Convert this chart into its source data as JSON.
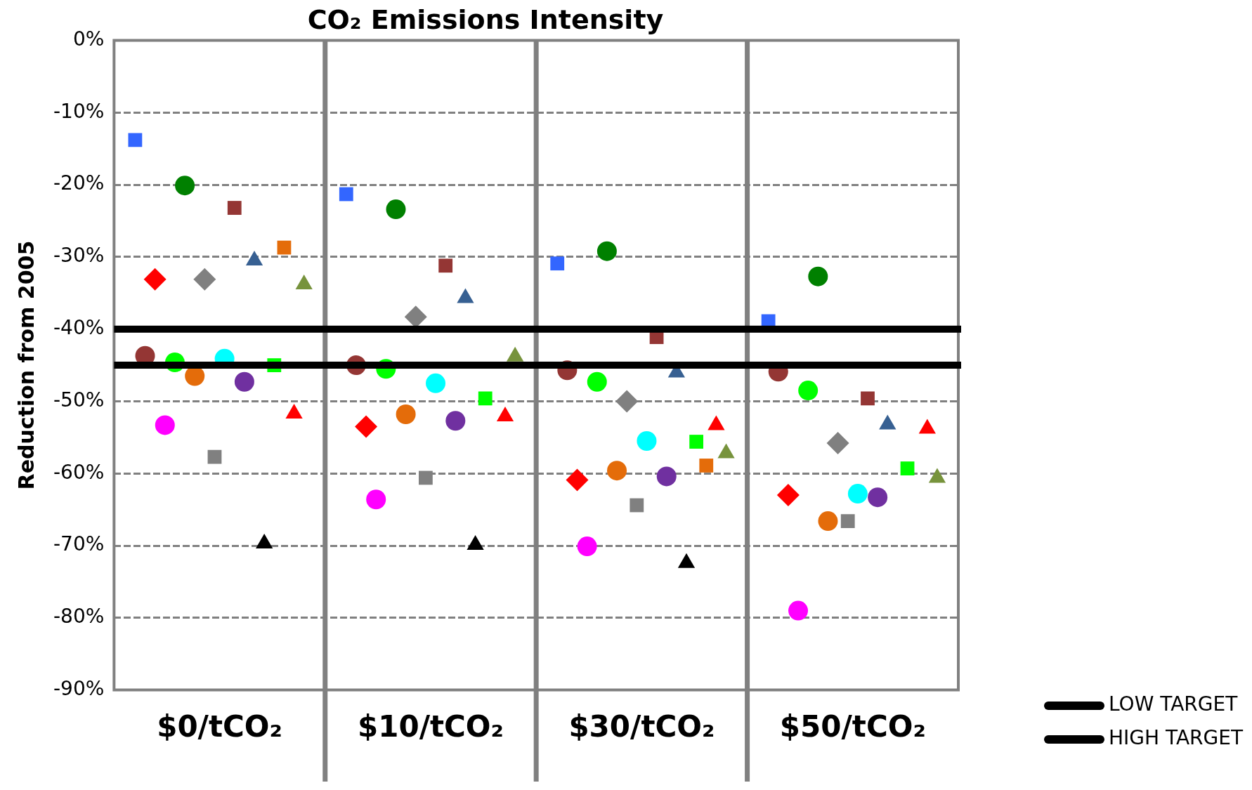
{
  "chart_data": {
    "type": "scatter",
    "title": "CO₂ Emissions Intensity",
    "ylabel": "Reduction from 2005",
    "categories": [
      "$0/tCO₂",
      "$10/tCO₂",
      "$30/tCO₂",
      "$50/tCO₂"
    ],
    "ylim": [
      -90,
      0
    ],
    "yticks": [
      {
        "value": -90,
        "label": "-90%"
      },
      {
        "value": -80,
        "label": "-80%"
      },
      {
        "value": -70,
        "label": "-70%"
      },
      {
        "value": -60,
        "label": "-60%"
      },
      {
        "value": -50,
        "label": "-50%"
      },
      {
        "value": -40,
        "label": "-40%"
      },
      {
        "value": -30,
        "label": "-30%"
      },
      {
        "value": -20,
        "label": "-20%"
      },
      {
        "value": -10,
        "label": "-10%"
      },
      {
        "value": 0,
        "label": "0%"
      }
    ],
    "grid": "y",
    "legend": "bottom right",
    "ref_lines": [
      {
        "axis": "y",
        "value": -40,
        "label": "LOW TARGET",
        "color": "#000000"
      },
      {
        "axis": "y",
        "value": -45,
        "label": "HIGH TARGET",
        "color": "#000000"
      }
    ],
    "series": [
      {
        "color": "#3366ff",
        "marker": "square",
        "values": [
          -13.8,
          -21.3,
          -30.9,
          -38.9
        ]
      },
      {
        "color": "#008000",
        "marker": "circle",
        "values": [
          -20.1,
          -23.4,
          -29.2,
          -32.7
        ]
      },
      {
        "color": "#943634",
        "marker": "square",
        "values": [
          -23.2,
          -31.2,
          -41.1,
          -49.6
        ]
      },
      {
        "color": "#e46c0a",
        "marker": "square",
        "values": [
          -28.7,
          null,
          -58.9,
          null
        ]
      },
      {
        "color": "#ff0000",
        "marker": "diamond",
        "values": [
          -33.1,
          -53.5,
          -60.9,
          -63.0
        ]
      },
      {
        "color": "#808080",
        "marker": "diamond",
        "values": [
          -33.1,
          -38.3,
          -50.0,
          -55.8
        ]
      },
      {
        "color": "#376092",
        "marker": "triangle",
        "values": [
          -30.5,
          -35.7,
          -46.0,
          -53.2
        ]
      },
      {
        "color": "#77933c",
        "marker": "triangle",
        "values": [
          -33.8,
          -43.8,
          -57.2,
          -60.6
        ]
      },
      {
        "color": "#00ff00",
        "marker": "circle",
        "values": [
          -44.6,
          -45.5,
          -47.3,
          -48.5
        ]
      },
      {
        "color": "#00ffff",
        "marker": "circle",
        "values": [
          -44.1,
          -47.5,
          -55.5,
          -62.8
        ]
      },
      {
        "color": "#00ff00",
        "marker": "square",
        "values": [
          -45.0,
          -49.6,
          -55.6,
          -59.3
        ]
      },
      {
        "color": "#943634",
        "marker": "circle",
        "values": [
          -43.7,
          -45.0,
          -45.7,
          -45.9
        ]
      },
      {
        "color": "#e46c0a",
        "marker": "circle",
        "values": [
          -46.5,
          -51.8,
          -59.6,
          -66.6
        ]
      },
      {
        "color": "#7030a0",
        "marker": "circle",
        "values": [
          -47.3,
          -52.7,
          -60.4,
          -63.3
        ]
      },
      {
        "color": "#ff0000",
        "marker": "triangle",
        "values": [
          -51.7,
          -52.1,
          -53.3,
          -53.8
        ]
      },
      {
        "color": "#ff00ff",
        "marker": "circle",
        "values": [
          -53.3,
          -63.6,
          -70.1,
          -79.0
        ]
      },
      {
        "color": "#808080",
        "marker": "square",
        "values": [
          -57.7,
          -60.6,
          -64.4,
          -66.6
        ]
      },
      {
        "color": "#000000",
        "marker": "triangle",
        "values": [
          -69.7,
          -69.9,
          -72.4,
          null
        ]
      }
    ]
  }
}
